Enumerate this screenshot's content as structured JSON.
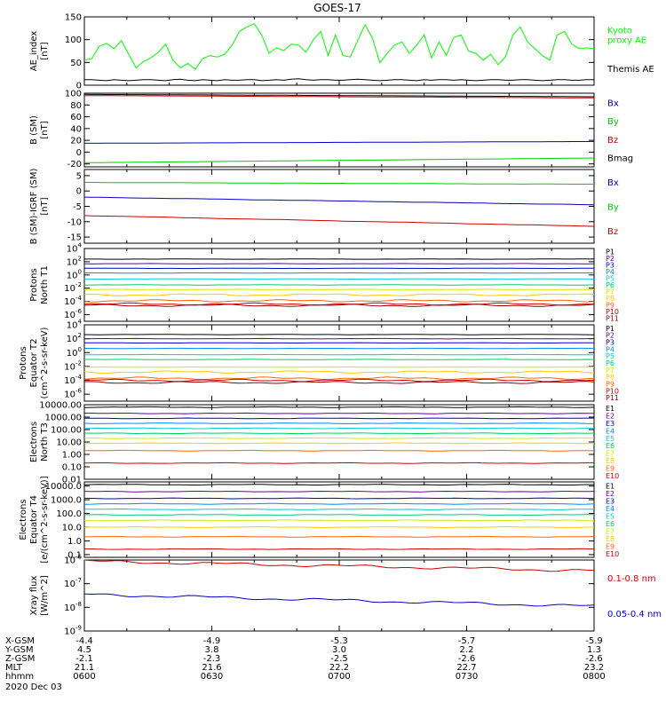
{
  "title": "GOES-17",
  "footer": {
    "labels": [
      "X-GSM",
      "Y-GSM",
      "Z-GSM",
      "MLT",
      "hhmm"
    ],
    "date": "2020 Dec 03",
    "columns": [
      [
        "-4.4",
        "4.5",
        "-2.1",
        "21.1",
        "0600"
      ],
      [
        "-4.9",
        "3.8",
        "-2.3",
        "21.6",
        "0630"
      ],
      [
        "-5.3",
        "3.0",
        "-2.5",
        "22.2",
        "0700"
      ],
      [
        "-5.7",
        "2.2",
        "-2.6",
        "22.7",
        "0730"
      ],
      [
        "-5.9",
        "1.3",
        "-2.6",
        "23.2",
        "0800"
      ]
    ]
  },
  "chart_data": [
    {
      "type": "line",
      "ylabel": "AE_index\n[nT]",
      "ylim": [
        0,
        150
      ],
      "yscale": "linear",
      "ticks": [
        "0",
        "50",
        "100",
        "150"
      ],
      "xlim": [
        0,
        120
      ],
      "series": [
        {
          "name": "Kyoto\nproxy AE",
          "color": "#00ff00",
          "values": [
            55,
            58,
            85,
            92,
            80,
            98,
            68,
            38,
            52,
            60,
            72,
            90,
            55,
            38,
            48,
            35,
            58,
            65,
            62,
            68,
            88,
            118,
            128,
            135,
            110,
            70,
            82,
            76,
            90,
            88,
            72,
            100,
            118,
            65,
            110,
            65,
            62,
            98,
            133,
            103,
            49,
            70,
            88,
            95,
            70,
            88,
            110,
            60,
            95,
            65,
            105,
            110,
            75,
            70,
            55,
            68,
            45,
            62,
            110,
            128,
            95,
            80,
            65,
            55,
            110,
            118,
            90,
            80,
            82,
            80
          ]
        },
        {
          "name": "Themis AE",
          "color": "#000000",
          "values": [
            12,
            12,
            11,
            10,
            12,
            11,
            10,
            11,
            12,
            12,
            11,
            10,
            12,
            13,
            11,
            10,
            12,
            11,
            10,
            12,
            11,
            11,
            12,
            12,
            10,
            11,
            12,
            11,
            13,
            14,
            12,
            11,
            12,
            12,
            11,
            11,
            12,
            13,
            12,
            11,
            10,
            11,
            12,
            12,
            11,
            10,
            12,
            11,
            12,
            12,
            11,
            12,
            11,
            10,
            11,
            12,
            12,
            11,
            11,
            12,
            12,
            11,
            10,
            11,
            12,
            12,
            11,
            11,
            12,
            12
          ]
        }
      ]
    },
    {
      "type": "line",
      "ylabel": "B (SM)\n[nT]",
      "ylim": [
        -25,
        100
      ],
      "yscale": "linear",
      "ticks": [
        "-20",
        "0",
        "20",
        "40",
        "60",
        "80",
        "100"
      ],
      "series": [
        {
          "name": "Bx",
          "color": "#0000cc",
          "start": 15,
          "end": 18
        },
        {
          "name": "By",
          "color": "#00cc00",
          "start": -18,
          "end": -10
        },
        {
          "name": "Bz",
          "color": "#cc0000",
          "start": 96,
          "end": 92
        },
        {
          "name": "Bmag",
          "color": "#000000",
          "start": 98,
          "end": 94
        }
      ]
    },
    {
      "type": "line",
      "ylabel": "B (SM)-IGRF (SM)\n[nT]",
      "ylim": [
        -17,
        7
      ],
      "yscale": "linear",
      "ticks": [
        "-15",
        "-10",
        "-5",
        "0",
        "5"
      ],
      "series": [
        {
          "name": "Bx",
          "color": "#0000cc",
          "start": -2,
          "end": -4.5
        },
        {
          "name": "By",
          "color": "#00cc00",
          "start": 2.8,
          "end": 2.2
        },
        {
          "name": "Bz",
          "color": "#cc0000",
          "start": -8,
          "end": -11.5
        }
      ]
    },
    {
      "type": "line",
      "ylabel": "Protons\nNorth T1",
      "ylim": [
        -7,
        4
      ],
      "yscale": "log",
      "ticks": [
        "10^4",
        "10^2",
        "10^0",
        "10^-2",
        "10^-4",
        "10^-6"
      ],
      "tickExp": [
        4,
        2,
        0,
        -2,
        -4,
        -6
      ],
      "legend": [
        "P1",
        "P2",
        "P3",
        "P4",
        "P5",
        "P6",
        "P7",
        "P8",
        "P9",
        "P10",
        "P11"
      ],
      "series": [
        {
          "name": "P1",
          "color": "#000000",
          "log": 2.4
        },
        {
          "name": "P2",
          "color": "#660099",
          "log": 1.7
        },
        {
          "name": "P3",
          "color": "#0000cc",
          "log": 1.0
        },
        {
          "name": "P4",
          "color": "#0088ff",
          "log": 0.3
        },
        {
          "name": "P5",
          "color": "#00cccc",
          "log": -0.6
        },
        {
          "name": "P6",
          "color": "#00cc66",
          "log": -1.5
        },
        {
          "name": "P7",
          "color": "#ccee00",
          "log": -2.2
        },
        {
          "name": "P8",
          "color": "#ffcc00",
          "log": -3.0
        },
        {
          "name": "P9",
          "color": "#ff6600",
          "log": -3.9
        },
        {
          "name": "P10",
          "color": "#cc0000",
          "log": -4.4
        },
        {
          "name": "P11",
          "color": "#990000",
          "log": -4.6
        }
      ]
    },
    {
      "type": "line",
      "ylabel": "Protons\nEquator T2\n(cm^2-s-sr-keV)",
      "ylim": [
        -7,
        4
      ],
      "yscale": "log",
      "ticks": [
        "10^4",
        "10^2",
        "10^0",
        "10^-2",
        "10^-4",
        "10^-6"
      ],
      "tickExp": [
        4,
        2,
        0,
        -2,
        -4,
        -6
      ],
      "legend": [
        "P1",
        "P2",
        "P3",
        "P4",
        "P5",
        "P6",
        "P7",
        "P8",
        "P9",
        "P10",
        "P11"
      ],
      "series": [
        {
          "name": "P1",
          "color": "#000000",
          "log": 2.6
        },
        {
          "name": "P2",
          "color": "#660099",
          "log": 2.0
        },
        {
          "name": "P3",
          "color": "#0000cc",
          "log": 1.4
        },
        {
          "name": "P4",
          "color": "#0088ff",
          "log": 0.6
        },
        {
          "name": "P5",
          "color": "#00cccc",
          "log": -0.3
        },
        {
          "name": "P6",
          "color": "#00cc66",
          "log": -1.0
        },
        {
          "name": "P7",
          "color": "#ccee00",
          "log": -2.1
        },
        {
          "name": "P8",
          "color": "#ffcc00",
          "log": -2.8
        },
        {
          "name": "P9",
          "color": "#ff6600",
          "log": -3.7
        },
        {
          "name": "P10",
          "color": "#cc0000",
          "log": -4.0
        },
        {
          "name": "P11",
          "color": "#990000",
          "log": -4.3
        }
      ]
    },
    {
      "type": "line",
      "ylabel": "Electrons\nNorth T3",
      "ylim": [
        -2,
        4
      ],
      "yscale": "log",
      "ticks": [
        "10000.00",
        "1000.00",
        "100.00",
        "10.00",
        "1.00",
        "0.10",
        "0.01"
      ],
      "tickExp": [
        4,
        3,
        2,
        1,
        0,
        -1,
        -2
      ],
      "legend": [
        "E1",
        "E2",
        "E3",
        "E4",
        "E5",
        "E6",
        "E7",
        "E8",
        "E9",
        "E10"
      ],
      "series": [
        {
          "name": "E1",
          "color": "#000000",
          "log": 3.8
        },
        {
          "name": "E2",
          "color": "#660099",
          "log": 3.3
        },
        {
          "name": "E3",
          "color": "#0000cc",
          "log": 2.9
        },
        {
          "name": "E4",
          "color": "#0088ff",
          "log": 2.5
        },
        {
          "name": "E5",
          "color": "#00cccc",
          "log": 2.1
        },
        {
          "name": "E6",
          "color": "#00cc66",
          "log": 1.7
        },
        {
          "name": "E7",
          "color": "#ccee00",
          "log": 1.3
        },
        {
          "name": "E8",
          "color": "#ffcc00",
          "log": 0.9
        },
        {
          "name": "E9",
          "color": "#ff6600",
          "log": 0.3
        },
        {
          "name": "E10",
          "color": "#cc0000",
          "log": -0.7
        }
      ]
    },
    {
      "type": "line",
      "ylabel": "Electrons\nEquator T4\n[e/(cm^2-s-sr-keV)]",
      "ylim": [
        -1.2,
        4.3
      ],
      "yscale": "log",
      "ticks": [
        "10000.0",
        "1000.0",
        "100.0",
        "10.0",
        "1.0",
        "0.1"
      ],
      "tickExp": [
        4,
        3,
        2,
        1,
        0,
        -1
      ],
      "legend": [
        "E1",
        "E2",
        "E3",
        "E4",
        "E5",
        "E6",
        "E7",
        "E8",
        "E9",
        "E10"
      ],
      "series": [
        {
          "name": "E1",
          "color": "#000000",
          "log": 4.1
        },
        {
          "name": "E2",
          "color": "#660099",
          "log": 3.6
        },
        {
          "name": "E3",
          "color": "#0000cc",
          "log": 3.1
        },
        {
          "name": "E4",
          "color": "#0088ff",
          "log": 2.7
        },
        {
          "name": "E5",
          "color": "#00cccc",
          "log": 2.3
        },
        {
          "name": "E6",
          "color": "#00cc66",
          "log": 1.9
        },
        {
          "name": "E7",
          "color": "#ccee00",
          "log": 1.5
        },
        {
          "name": "E8",
          "color": "#ffcc00",
          "log": 1.0
        },
        {
          "name": "E9",
          "color": "#ff6600",
          "log": 0.3
        },
        {
          "name": "E10",
          "color": "#cc0000",
          "log": -0.6
        }
      ]
    },
    {
      "type": "line",
      "ylabel": "Xray flux\n[W/m^2]",
      "ylim": [
        -9,
        -6
      ],
      "yscale": "log",
      "ticks": [
        "10^-6",
        "10^-7",
        "10^-8",
        "10^-9"
      ],
      "tickExp": [
        -6,
        -7,
        -8,
        -9
      ],
      "series": [
        {
          "name": "0.1-0.8 nm",
          "color": "#cc0000",
          "start": -6.05,
          "end": -6.45
        },
        {
          "name": "0.05-0.4 nm",
          "color": "#0000cc",
          "start": -7.45,
          "end": -7.95
        }
      ]
    }
  ]
}
